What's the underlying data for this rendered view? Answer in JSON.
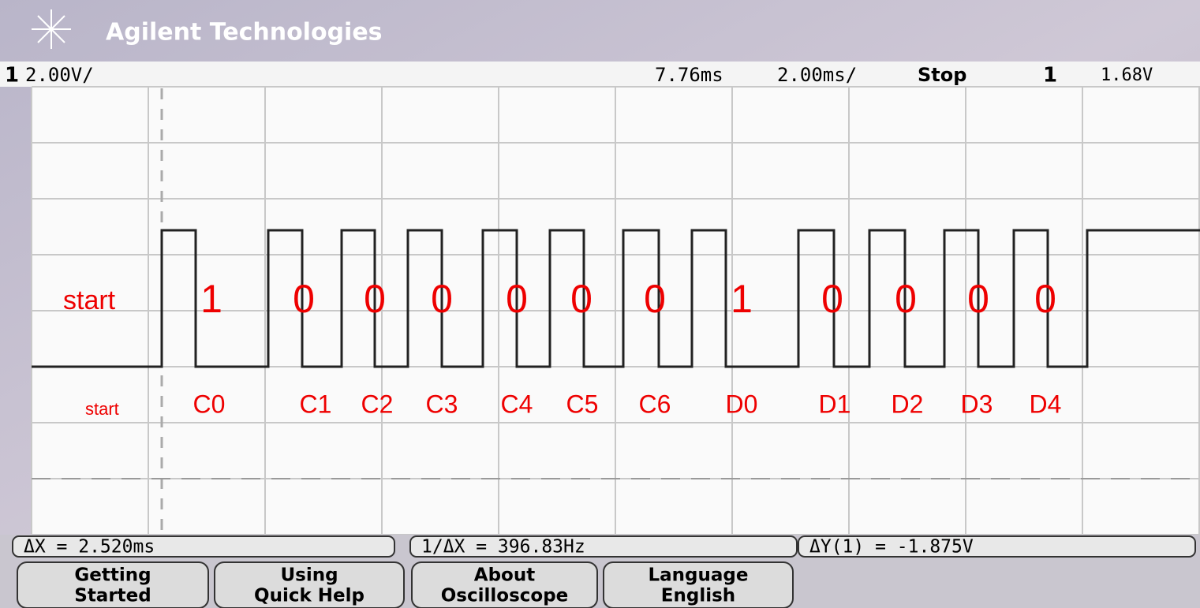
{
  "header": {
    "brand": "Agilent Technologies"
  },
  "status_line": {
    "channel": "1",
    "volts_per_div": "2.00V/",
    "delay": "7.76ms",
    "time_per_div": "2.00ms/",
    "run_state": "Stop",
    "trigger_source": "1",
    "trigger_level": "1.68V"
  },
  "annotations": {
    "start_labels": [
      "start",
      "start"
    ],
    "bits": [
      "1",
      "0",
      "0",
      "0",
      "0",
      "0",
      "0",
      "1",
      "0",
      "0",
      "0",
      "0"
    ],
    "bit_names": [
      "C0",
      "C1",
      "C2",
      "C3",
      "C4",
      "C5",
      "C6",
      "D0",
      "D1",
      "D2",
      "D3",
      "D4"
    ]
  },
  "measurements": [
    "ΔX = 2.520ms",
    "1/ΔX = 396.83Hz",
    "ΔY(1) = -1.875V"
  ],
  "softkeys": [
    {
      "line1": "Getting",
      "line2": "Started"
    },
    {
      "line1": "Using",
      "line2": "Quick Help"
    },
    {
      "line1": "About",
      "line2": "Oscilloscope"
    },
    {
      "line1": "Language",
      "line2": "English"
    }
  ]
}
